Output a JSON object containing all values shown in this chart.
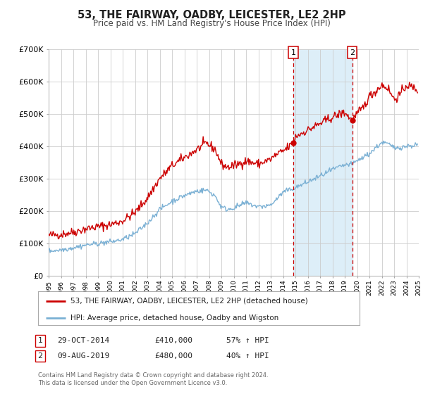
{
  "title": "53, THE FAIRWAY, OADBY, LEICESTER, LE2 2HP",
  "subtitle": "Price paid vs. HM Land Registry's House Price Index (HPI)",
  "legend_label_red": "53, THE FAIRWAY, OADBY, LEICESTER, LE2 2HP (detached house)",
  "legend_label_blue": "HPI: Average price, detached house, Oadby and Wigston",
  "transaction1_date": "29-OCT-2014",
  "transaction1_price": "£410,000",
  "transaction1_hpi": "57% ↑ HPI",
  "transaction1_year": 2014.83,
  "transaction1_value": 410000,
  "transaction2_date": "09-AUG-2019",
  "transaction2_price": "£480,000",
  "transaction2_hpi": "40% ↑ HPI",
  "transaction2_year": 2019.6,
  "transaction2_value": 480000,
  "bg_color": "#ffffff",
  "plot_bg_color": "#ffffff",
  "grid_color": "#cccccc",
  "red_color": "#cc0000",
  "blue_color": "#7ab0d4",
  "shade_color": "#ddeef8",
  "footnote": "Contains HM Land Registry data © Crown copyright and database right 2024.\nThis data is licensed under the Open Government Licence v3.0.",
  "ylim": [
    0,
    700000
  ],
  "xlim_start": 1995,
  "xlim_end": 2025
}
